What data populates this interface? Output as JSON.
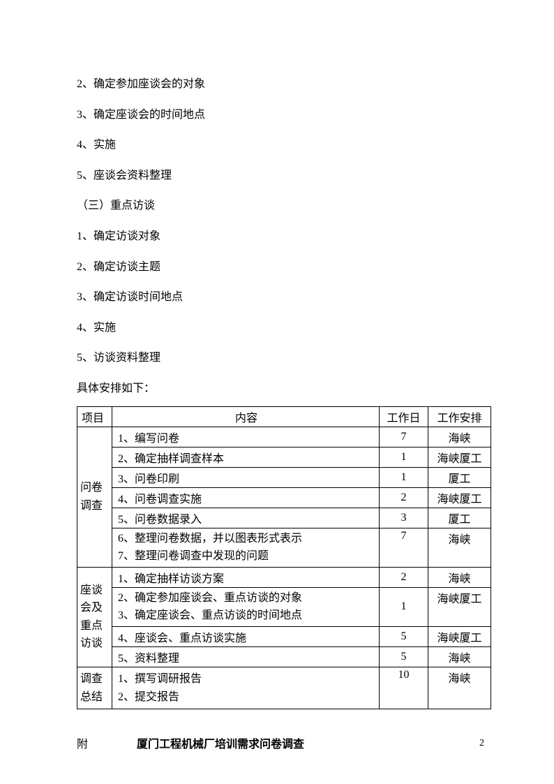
{
  "paragraphs": [
    "2、确定参加座谈会的对象",
    "3、确定座谈会的时间地点",
    "4、实施",
    "5、座谈会资料整理",
    "（三）重点访谈",
    "1、确定访谈对象",
    "2、确定访谈主题",
    "3、确定访谈时间地点",
    "4、实施",
    "5、访谈资料整理",
    "具体安排如下："
  ],
  "table": {
    "headers": {
      "project": "项目",
      "content": "内容",
      "days": "工作日",
      "arrange": "工作安排"
    },
    "sections": [
      {
        "project_label": "问卷调查",
        "rows": [
          {
            "content": "1、编写问卷",
            "days": "7",
            "arrange": "海峡"
          },
          {
            "content": "2、确定抽样调查样本",
            "days": "1",
            "arrange": "海峡厦工"
          },
          {
            "content": "3、问卷印刷",
            "days": "1",
            "arrange": "厦工"
          },
          {
            "content": "4、问卷调查实施",
            "days": "2",
            "arrange": "海峡厦工"
          },
          {
            "content": "5、问卷数据录入",
            "days": "3",
            "arrange": "厦工"
          },
          {
            "content_line1": "6、整理问卷数据，并以图表形式表示",
            "content_line2": "7、整理问卷调查中发现的问题",
            "days": "7",
            "arrange": "海峡"
          }
        ]
      },
      {
        "project_label": "座谈会及重点访谈",
        "rows": [
          {
            "content": "1、确定抽样访谈方案",
            "days": "2",
            "arrange": "海峡"
          },
          {
            "content_line1": "2、确定参加座谈会、重点访谈的对象",
            "content_line2": "3、确定座谈会、重点访谈的时间地点",
            "days": "1",
            "arrange": "海峡厦工"
          },
          {
            "content": "4、座谈会、重点访谈实施",
            "days": "5",
            "arrange": "海峡厦工"
          },
          {
            "content": "5、资料整理",
            "days": "5",
            "arrange": "海峡"
          }
        ]
      },
      {
        "project_label": "调查总结",
        "rows": [
          {
            "content_line1": "1、撰写调研报告",
            "content_line2": "2、提交报告",
            "days": "10",
            "arrange": "海峡"
          }
        ]
      }
    ]
  },
  "appendix": {
    "label": "附",
    "title": "厦门工程机械厂培训需求问卷调查"
  },
  "page_number": "2"
}
